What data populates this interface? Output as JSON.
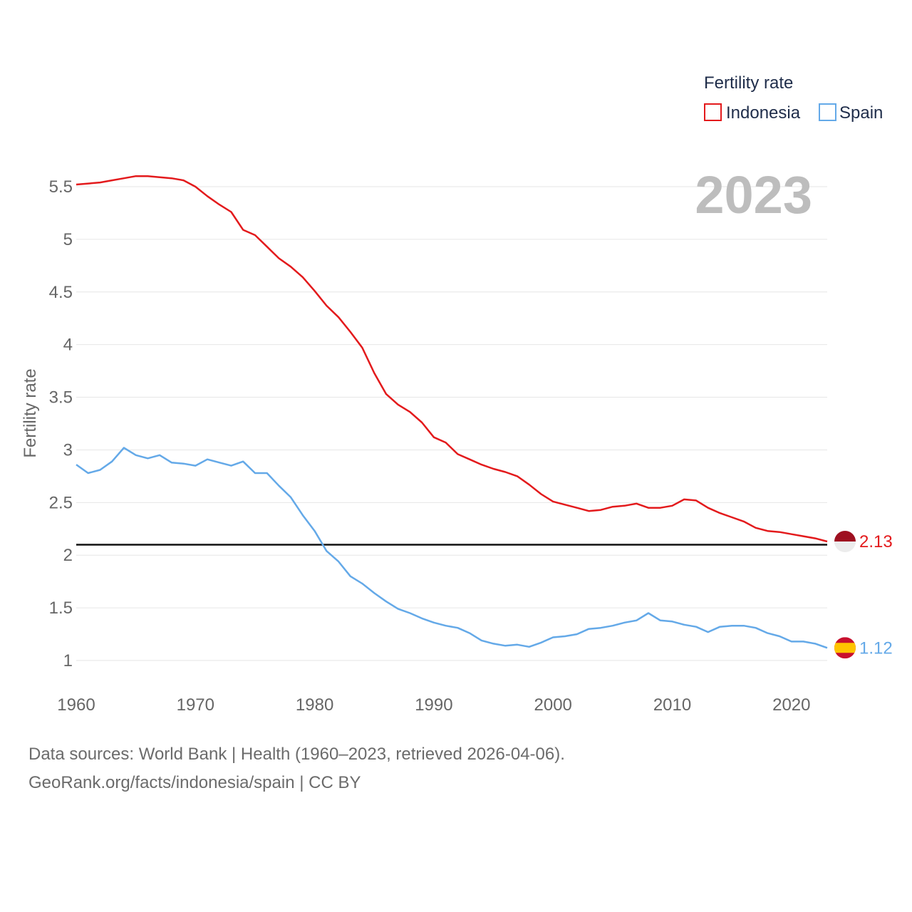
{
  "chart_data": {
    "type": "line",
    "title": "Fertility rate",
    "ylabel": "Fertility rate",
    "xlabel": "",
    "xlim": [
      1960,
      2023
    ],
    "ylim": [
      0.75,
      5.75
    ],
    "x_ticks": [
      1960,
      1970,
      1980,
      1990,
      2000,
      2010,
      2020
    ],
    "y_ticks": [
      1,
      1.5,
      2,
      2.5,
      3,
      3.5,
      4,
      4.5,
      5,
      5.5
    ],
    "y_tick_labels": [
      "1",
      "1.5",
      "2",
      "2.5",
      "3",
      "3.5",
      "4",
      "4.5",
      "5",
      "5.5"
    ],
    "reference_line": 2.1,
    "year_label": "2023",
    "legend_position": "top-right",
    "x": [
      1960,
      1961,
      1962,
      1963,
      1964,
      1965,
      1966,
      1967,
      1968,
      1969,
      1970,
      1971,
      1972,
      1973,
      1974,
      1975,
      1976,
      1977,
      1978,
      1979,
      1980,
      1981,
      1982,
      1983,
      1984,
      1985,
      1986,
      1987,
      1988,
      1989,
      1990,
      1991,
      1992,
      1993,
      1994,
      1995,
      1996,
      1997,
      1998,
      1999,
      2000,
      2001,
      2002,
      2003,
      2004,
      2005,
      2006,
      2007,
      2008,
      2009,
      2010,
      2011,
      2012,
      2013,
      2014,
      2015,
      2016,
      2017,
      2018,
      2019,
      2020,
      2021,
      2022,
      2023
    ],
    "series": [
      {
        "name": "Indonesia",
        "color": "#e31a1c",
        "end_label": "2.13",
        "values": [
          5.52,
          5.53,
          5.54,
          5.56,
          5.58,
          5.6,
          5.6,
          5.59,
          5.58,
          5.56,
          5.5,
          5.41,
          5.33,
          5.26,
          5.09,
          5.04,
          4.93,
          4.82,
          4.74,
          4.64,
          4.51,
          4.37,
          4.26,
          4.12,
          3.97,
          3.73,
          3.53,
          3.43,
          3.36,
          3.26,
          3.12,
          3.07,
          2.96,
          2.91,
          2.86,
          2.82,
          2.79,
          2.75,
          2.67,
          2.58,
          2.51,
          2.48,
          2.45,
          2.42,
          2.43,
          2.46,
          2.47,
          2.49,
          2.45,
          2.45,
          2.47,
          2.53,
          2.52,
          2.45,
          2.4,
          2.36,
          2.32,
          2.26,
          2.23,
          2.22,
          2.2,
          2.18,
          2.16,
          2.13
        ]
      },
      {
        "name": "Spain",
        "color": "#64a9e8",
        "end_label": "1.12",
        "values": [
          2.86,
          2.78,
          2.81,
          2.89,
          3.02,
          2.95,
          2.92,
          2.95,
          2.88,
          2.87,
          2.85,
          2.91,
          2.88,
          2.85,
          2.89,
          2.78,
          2.78,
          2.66,
          2.55,
          2.38,
          2.23,
          2.04,
          1.94,
          1.8,
          1.73,
          1.64,
          1.56,
          1.49,
          1.45,
          1.4,
          1.36,
          1.33,
          1.31,
          1.26,
          1.19,
          1.16,
          1.14,
          1.15,
          1.13,
          1.17,
          1.22,
          1.23,
          1.25,
          1.3,
          1.31,
          1.33,
          1.36,
          1.38,
          1.45,
          1.38,
          1.37,
          1.34,
          1.32,
          1.27,
          1.32,
          1.33,
          1.33,
          1.31,
          1.26,
          1.23,
          1.18,
          1.18,
          1.16,
          1.12
        ]
      }
    ]
  },
  "footer": {
    "line1": "Data sources: World Bank | Health (1960–2023, retrieved 2026-04-06).",
    "line2": "GeoRank.org/facts/indonesia/spain | CC BY"
  }
}
